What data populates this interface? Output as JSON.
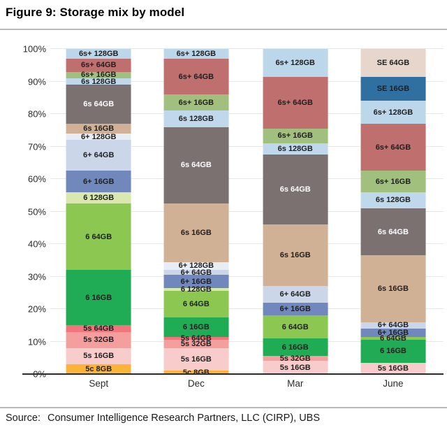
{
  "title": "Figure 9: Storage mix by model",
  "source": {
    "label": "Source:",
    "text": "Consumer Intelligence Research Partners, LLC (CIRP), UBS"
  },
  "chart_data": {
    "type": "bar",
    "stacked": true,
    "unit": "percent",
    "title": "Figure 9: Storage mix by model",
    "xlabel": "",
    "ylabel": "",
    "ylim": [
      0,
      100
    ],
    "grid": "horizontal",
    "legend": "none (segments labeled inline)",
    "categories": [
      "Sept",
      "Dec",
      "Mar",
      "June"
    ],
    "yticks": [
      "0%",
      "10%",
      "20%",
      "30%",
      "40%",
      "50%",
      "60%",
      "70%",
      "80%",
      "90%",
      "100%"
    ],
    "segment_colors": {
      "5c 8GB": "#FBB437",
      "5s 16GB": "#F9CCCC",
      "5s 32GB": "#F59E9E",
      "5s 64GB": "#F2747C",
      "6 16GB": "#1FAC55",
      "6 64GB": "#8CC751",
      "6 128GB": "#DAE8B0",
      "6+ 16GB": "#7088BB",
      "6+ 64GB": "#CBD7E9",
      "6+ 128GB": "#E7EDF5",
      "6s 16GB": "#D0B195",
      "6s 64GB": "#7B7170",
      "6s 128GB": "#BFD8EC",
      "6s+ 16GB": "#A2C07D",
      "6s+ 64GB": "#C06F6F",
      "6s+ 128GB": "#BCD6EA",
      "SE 16GB": "#2F70A0",
      "SE 64GB": "#E6D6CC"
    },
    "light_label_segments": [
      "6s 64GB"
    ],
    "bars": [
      {
        "category": "Sept",
        "segments": [
          {
            "label": "5c 8GB",
            "value": 3
          },
          {
            "label": "5s 16GB",
            "value": 5
          },
          {
            "label": "5s 32GB",
            "value": 5
          },
          {
            "label": "5s 64GB",
            "value": 2
          },
          {
            "label": "6 16GB",
            "value": 17
          },
          {
            "label": "6 64GB",
            "value": 20.5
          },
          {
            "label": "6 128GB",
            "value": 3.5
          },
          {
            "label": "6+ 16GB",
            "value": 6.5
          },
          {
            "label": "6+ 64GB",
            "value": 9.5
          },
          {
            "label": "6+ 128GB",
            "value": 2
          },
          {
            "label": "6s 16GB",
            "value": 3
          },
          {
            "label": "6s 64GB",
            "value": 12
          },
          {
            "label": "6s 128GB",
            "value": 2
          },
          {
            "label": "6s+ 16GB",
            "value": 2
          },
          {
            "label": "6s+ 64GB",
            "value": 4
          },
          {
            "label": "6s+ 128GB",
            "value": 3
          }
        ]
      },
      {
        "category": "Dec",
        "segments": [
          {
            "label": "5c 8GB",
            "value": 1
          },
          {
            "label": "5s 16GB",
            "value": 7
          },
          {
            "label": "5s 32GB",
            "value": 2.5
          },
          {
            "label": "5s 64GB",
            "value": 1
          },
          {
            "label": "6 16GB",
            "value": 6
          },
          {
            "label": "6 64GB",
            "value": 8
          },
          {
            "label": "6 128GB",
            "value": 1
          },
          {
            "label": "6+ 16GB",
            "value": 4
          },
          {
            "label": "6+ 64GB",
            "value": 1.5
          },
          {
            "label": "6+ 128GB",
            "value": 2.5
          },
          {
            "label": "6s 16GB",
            "value": 18
          },
          {
            "label": "6s 64GB",
            "value": 23.5
          },
          {
            "label": "6s 128GB",
            "value": 5
          },
          {
            "label": "6s+ 16GB",
            "value": 5
          },
          {
            "label": "6s+ 64GB",
            "value": 11
          },
          {
            "label": "6s+ 128GB",
            "value": 3
          }
        ]
      },
      {
        "category": "Mar",
        "segments": [
          {
            "label": "5s 16GB",
            "value": 4
          },
          {
            "label": "5s 32GB",
            "value": 1.5
          },
          {
            "label": "6 16GB",
            "value": 5.5
          },
          {
            "label": "6 64GB",
            "value": 7
          },
          {
            "label": "6+ 16GB",
            "value": 4
          },
          {
            "label": "6+ 64GB",
            "value": 5
          },
          {
            "label": "6s 16GB",
            "value": 19
          },
          {
            "label": "6s 64GB",
            "value": 21.5
          },
          {
            "label": "6s 128GB",
            "value": 3.5
          },
          {
            "label": "6s+ 16GB",
            "value": 4.5
          },
          {
            "label": "6s+ 64GB",
            "value": 16
          },
          {
            "label": "6s+ 128GB",
            "value": 8.5
          }
        ]
      },
      {
        "category": "June",
        "segments": [
          {
            "label": "5s 16GB",
            "value": 3.5
          },
          {
            "label": "6 16GB",
            "value": 7
          },
          {
            "label": "6 64GB",
            "value": 1
          },
          {
            "label": "6+ 16GB",
            "value": 2.5
          },
          {
            "label": "6+ 64GB",
            "value": 2
          },
          {
            "label": "6s 16GB",
            "value": 20.5
          },
          {
            "label": "6s 64GB",
            "value": 14.5
          },
          {
            "label": "6s 128GB",
            "value": 5
          },
          {
            "label": "6s+ 16GB",
            "value": 6.5
          },
          {
            "label": "6s+ 64GB",
            "value": 14.5
          },
          {
            "label": "6s+ 128GB",
            "value": 7
          },
          {
            "label": "SE 16GB",
            "value": 7.5
          },
          {
            "label": "SE 64GB",
            "value": 8.5
          }
        ]
      }
    ],
    "layout_hints": {
      "bar_centers_pct": [
        12.3,
        37.1,
        62.3,
        87.2
      ],
      "bar_width_pct": 16.5
    }
  }
}
